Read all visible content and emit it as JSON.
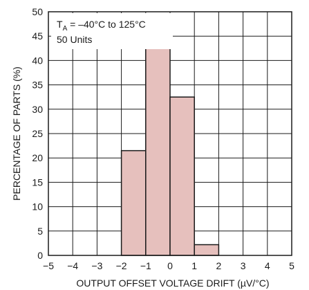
{
  "chart_data": {
    "type": "bar",
    "title": "",
    "xlabel": "OUTPUT OFFSET VOLTAGE DRIFT (µV/°C)",
    "ylabel": "PERCENTAGE OF PARTS (%)",
    "xlim": [
      -5,
      5
    ],
    "ylim": [
      0,
      50
    ],
    "xticks": [
      -5,
      -4,
      -3,
      -2,
      -1,
      0,
      1,
      2,
      3,
      4,
      5
    ],
    "yticks": [
      0,
      5,
      10,
      15,
      20,
      25,
      30,
      35,
      40,
      45,
      50
    ],
    "grid": true,
    "bins": [
      {
        "x0": -2,
        "x1": -1,
        "value": 21.5
      },
      {
        "x0": -1,
        "x1": 0,
        "value": 43.5
      },
      {
        "x0": 0,
        "x1": 1,
        "value": 32.5
      },
      {
        "x0": 1,
        "x1": 2,
        "value": 2.2
      }
    ],
    "annotation": {
      "line1_prefix": "T",
      "line1_sub": "A",
      "line1_suffix": " = –40°C to 125°C",
      "line2": "50 Units"
    },
    "colors": {
      "bar_fill": "#e6c0bd",
      "bar_stroke": "#1a1a1a",
      "grid": "#1a1a1a",
      "axis": "#1a1a1a"
    }
  }
}
